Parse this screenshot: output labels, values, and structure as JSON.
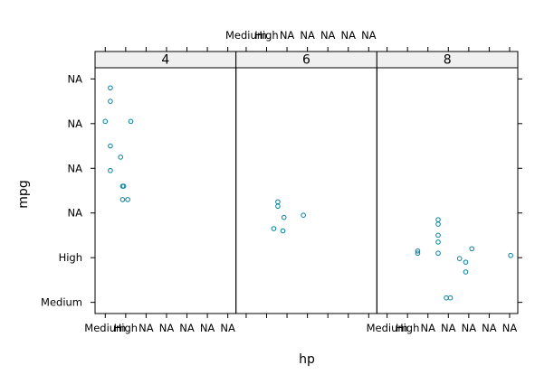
{
  "chart_data": {
    "type": "scatter",
    "panel_layout": "1 row x 3 columns, x tick labels alternate bottom/top, y tick labels left",
    "xlabel": "hp",
    "ylabel": "mpg",
    "x_tick_labels": [
      "Medium",
      "High",
      "NA",
      "NA",
      "NA",
      "NA",
      "NA"
    ],
    "y_tick_labels": [
      "Medium",
      "High",
      "NA",
      "NA",
      "NA",
      "NA"
    ],
    "x_range": [
      0.5,
      7.4
    ],
    "y_range": [
      0.75,
      6.25
    ],
    "point_color": "#0080a0",
    "strip_color": "#f0f0f0",
    "panels": [
      {
        "strip": "4",
        "points": [
          {
            "x": 1.0,
            "y": 5.05
          },
          {
            "x": 1.25,
            "y": 5.8
          },
          {
            "x": 1.25,
            "y": 5.5
          },
          {
            "x": 2.25,
            "y": 5.05
          },
          {
            "x": 1.25,
            "y": 4.5
          },
          {
            "x": 1.75,
            "y": 4.25
          },
          {
            "x": 1.25,
            "y": 3.95
          },
          {
            "x": 1.85,
            "y": 3.6
          },
          {
            "x": 1.9,
            "y": 3.6
          },
          {
            "x": 1.85,
            "y": 3.3
          },
          {
            "x": 2.1,
            "y": 3.3
          }
        ]
      },
      {
        "strip": "6",
        "points": [
          {
            "x": 2.55,
            "y": 3.25
          },
          {
            "x": 2.55,
            "y": 3.15
          },
          {
            "x": 2.85,
            "y": 2.9
          },
          {
            "x": 3.8,
            "y": 2.95
          },
          {
            "x": 2.35,
            "y": 2.65
          },
          {
            "x": 2.8,
            "y": 2.6
          }
        ]
      },
      {
        "strip": "8",
        "points": [
          {
            "x": 3.5,
            "y": 2.85
          },
          {
            "x": 3.5,
            "y": 2.75
          },
          {
            "x": 3.5,
            "y": 2.5
          },
          {
            "x": 3.5,
            "y": 2.35
          },
          {
            "x": 2.5,
            "y": 2.15
          },
          {
            "x": 2.5,
            "y": 2.1
          },
          {
            "x": 3.5,
            "y": 2.1
          },
          {
            "x": 5.15,
            "y": 2.2
          },
          {
            "x": 4.55,
            "y": 1.98
          },
          {
            "x": 4.85,
            "y": 1.9
          },
          {
            "x": 4.85,
            "y": 1.68
          },
          {
            "x": 7.05,
            "y": 2.05
          },
          {
            "x": 3.9,
            "y": 1.1
          },
          {
            "x": 4.1,
            "y": 1.1
          }
        ]
      }
    ]
  }
}
